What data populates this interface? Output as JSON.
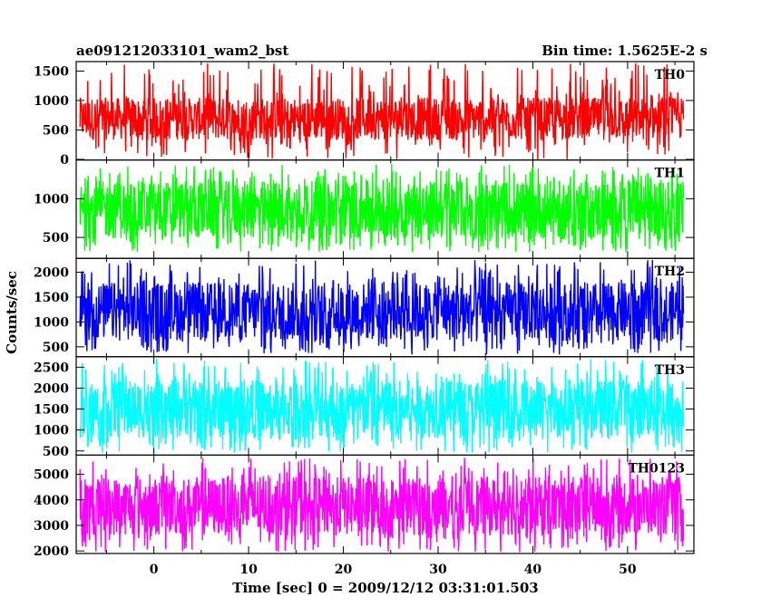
{
  "header": {
    "title_left": "ae091212033101_wam2_bst",
    "title_right": "Bin time: 1.5625E-2 s"
  },
  "chart_data": {
    "type": "line",
    "xlabel": "Time [sec] 0 = 2009/12/12 03:31:01.503",
    "ylabel": "Counts/sec",
    "xlim": [
      -8.2,
      57.0
    ],
    "x_ticks": [
      0,
      10,
      20,
      30,
      40,
      50
    ],
    "x_tick_labels": [
      "0",
      "10",
      "20",
      "30",
      "40",
      "50"
    ],
    "data_x_range": [
      -7.8,
      55.9
    ],
    "grid": false,
    "panels": [
      {
        "name": "TH0",
        "color": "#ff0000",
        "ylim": [
          -10,
          1660
        ],
        "ticks": [
          0,
          500,
          1000,
          1500
        ],
        "tick_labels": [
          "0",
          "500",
          "1000",
          "1500"
        ],
        "band": [
          0,
          1650
        ],
        "typical": [
          330,
          1050
        ]
      },
      {
        "name": "TH1",
        "color": "#00ff00",
        "ylim": [
          230,
          1500
        ],
        "ticks": [
          500,
          1000
        ],
        "tick_labels": [
          "500",
          "1000"
        ],
        "band": [
          310,
          1450
        ],
        "typical": [
          480,
          1230
        ]
      },
      {
        "name": "TH2",
        "color": "#0000ff",
        "ylim": [
          300,
          2280
        ],
        "ticks": [
          500,
          1000,
          1500,
          2000
        ],
        "tick_labels": [
          "500",
          "1000",
          "1500",
          "2000"
        ],
        "band": [
          340,
          2250
        ],
        "typical": [
          620,
          1800
        ]
      },
      {
        "name": "TH3",
        "color": "#00ffff",
        "ylim": [
          400,
          2750
        ],
        "ticks": [
          500,
          1000,
          1500,
          2000,
          2500
        ],
        "tick_labels": [
          "500",
          "1000",
          "1500",
          "2000",
          "2500"
        ],
        "band": [
          450,
          2700
        ],
        "typical": [
          800,
          2200
        ]
      },
      {
        "name": "TH0123",
        "color": "#ff00ff",
        "ylim": [
          1900,
          5750
        ],
        "ticks": [
          2000,
          3000,
          4000,
          5000
        ],
        "tick_labels": [
          "2000",
          "3000",
          "4000",
          "5000"
        ],
        "band": [
          1950,
          5650
        ],
        "typical": [
          2600,
          4900
        ]
      }
    ]
  }
}
